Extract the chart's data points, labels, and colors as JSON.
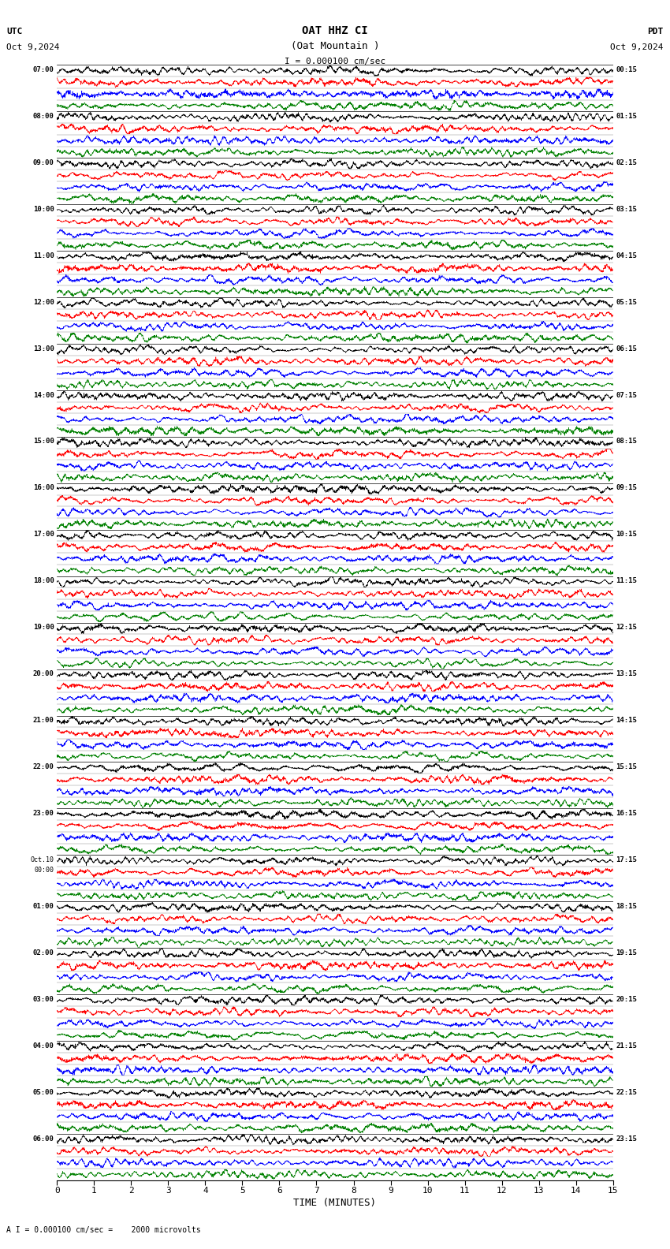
{
  "title_line1": "OAT HHZ CI",
  "title_line2": "(Oat Mountain )",
  "scale_text": "I = 0.000100 cm/sec",
  "utc_label": "UTC",
  "pdt_label": "PDT",
  "left_date": "Oct 9,2024",
  "right_date": "Oct 9,2024",
  "bottom_label": "TIME (MINUTES)",
  "bottom_note": "A I = 0.000100 cm/sec =    2000 microvolts",
  "xlabel_ticks": [
    0,
    1,
    2,
    3,
    4,
    5,
    6,
    7,
    8,
    9,
    10,
    11,
    12,
    13,
    14,
    15
  ],
  "left_times": [
    "07:00",
    "08:00",
    "09:00",
    "10:00",
    "11:00",
    "12:00",
    "13:00",
    "14:00",
    "15:00",
    "16:00",
    "17:00",
    "18:00",
    "19:00",
    "20:00",
    "21:00",
    "22:00",
    "23:00",
    "Oct.10\n00:00",
    "01:00",
    "02:00",
    "03:00",
    "04:00",
    "05:00",
    "06:00"
  ],
  "right_times": [
    "00:15",
    "01:15",
    "02:15",
    "03:15",
    "04:15",
    "05:15",
    "06:15",
    "07:15",
    "08:15",
    "09:15",
    "10:15",
    "11:15",
    "12:15",
    "13:15",
    "14:15",
    "15:15",
    "16:15",
    "17:15",
    "18:15",
    "19:15",
    "20:15",
    "21:15",
    "22:15",
    "23:15"
  ],
  "num_rows": 24,
  "traces_per_row": 4,
  "colors": [
    "black",
    "red",
    "blue",
    "green"
  ],
  "bg_color": "white",
  "fig_width": 8.5,
  "fig_height": 15.84,
  "dpi": 100
}
